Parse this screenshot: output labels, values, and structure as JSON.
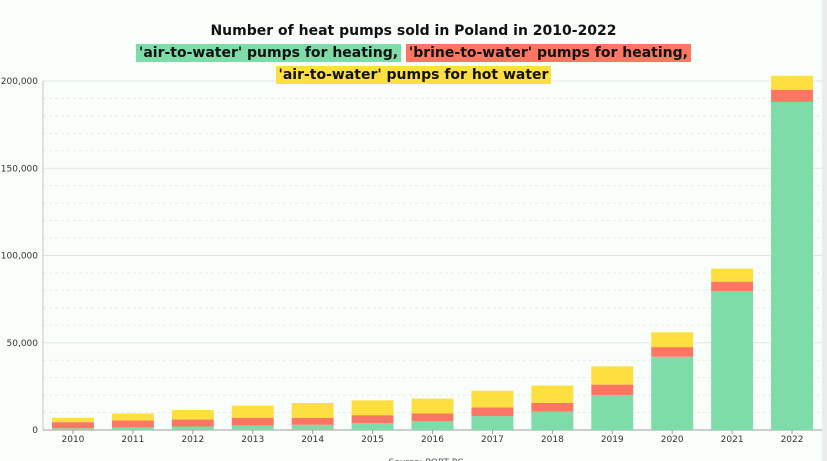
{
  "chart_data": {
    "type": "bar",
    "stacked": true,
    "title": "Number of heat pumps sold in Poland in 2010-2022",
    "subtitle_parts": [
      {
        "text": "'air-to-water' pumps for heating,",
        "color": "#7ddca7"
      },
      {
        "text": "'brine-to-water' pumps for heating,",
        "color": "#fd7663"
      },
      {
        "text": "'air-to-water' pumps for hot water",
        "color": "#fde040"
      }
    ],
    "categories": [
      "2010",
      "2011",
      "2012",
      "2013",
      "2014",
      "2015",
      "2016",
      "2017",
      "2018",
      "2019",
      "2020",
      "2021",
      "2022"
    ],
    "series": [
      {
        "color": "#7ddca7",
        "values": [
          1000,
          1500,
          2000,
          2500,
          3000,
          4000,
          5000,
          8000,
          10500,
          20000,
          42000,
          79500,
          188000
        ]
      },
      {
        "color": "#fd7663",
        "values": [
          3500,
          4000,
          4000,
          4500,
          4000,
          4500,
          4500,
          5000,
          5000,
          6000,
          5500,
          5500,
          7000
        ]
      },
      {
        "color": "#fde040",
        "values": [
          2500,
          4000,
          5500,
          7000,
          8500,
          8500,
          8500,
          9500,
          10000,
          10500,
          8500,
          7500,
          8000
        ]
      }
    ],
    "ylim": [
      0,
      200000
    ],
    "yticks": [
      0,
      50000,
      100000,
      150000,
      200000
    ],
    "ytick_labels": [
      "0",
      "50,000",
      "100,000",
      "150,000",
      "200,000"
    ],
    "grid": true,
    "source": "Source: PORT PC"
  }
}
